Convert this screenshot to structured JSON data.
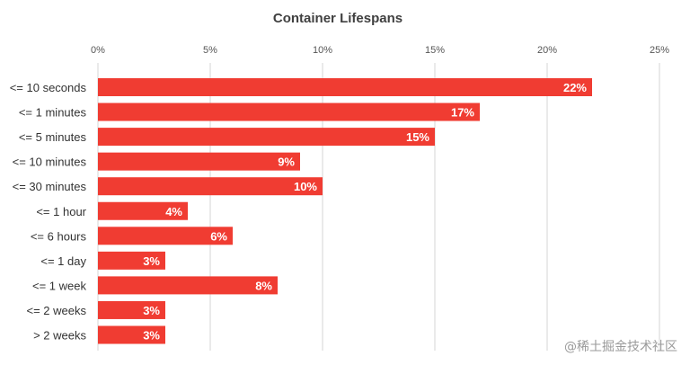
{
  "chart_data": {
    "type": "bar",
    "orientation": "horizontal",
    "title": "Container Lifespans",
    "xlabel": "",
    "ylabel": "",
    "xlim": [
      0,
      25
    ],
    "x_ticks": [
      0,
      5,
      10,
      15,
      20,
      25
    ],
    "x_tick_labels": [
      "0%",
      "5%",
      "10%",
      "15%",
      "20%",
      "25%"
    ],
    "tick_position": "top",
    "grid": true,
    "bar_color": "#f03c32",
    "categories": [
      "<= 10 seconds",
      "<= 1 minutes",
      "<= 5 minutes",
      "<= 10 minutes",
      "<= 30 minutes",
      "<= 1 hour",
      "<= 6 hours",
      "<= 1 day",
      "<= 1 week",
      "<= 2 weeks",
      "> 2 weeks"
    ],
    "values": [
      22,
      17,
      15,
      9,
      10,
      4,
      6,
      3,
      8,
      3,
      3
    ],
    "value_labels": [
      "22%",
      "17%",
      "15%",
      "9%",
      "10%",
      "4%",
      "6%",
      "3%",
      "8%",
      "3%",
      "3%"
    ]
  },
  "watermark": "@稀土掘金技术社区"
}
